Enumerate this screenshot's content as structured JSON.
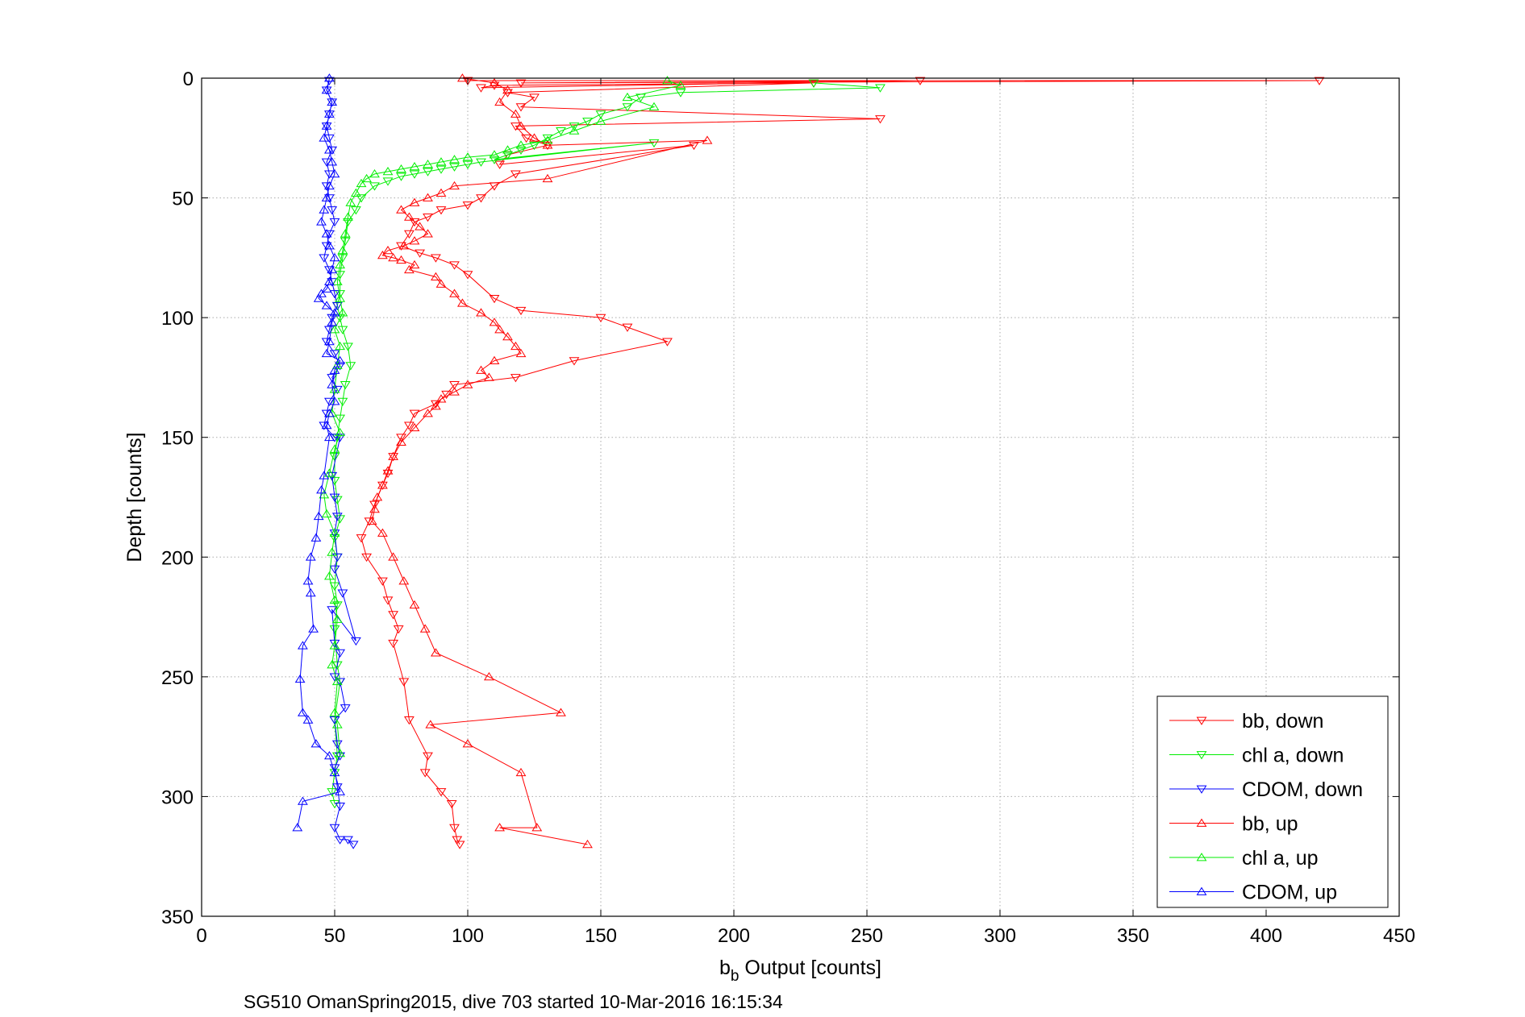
{
  "chart_data": {
    "type": "line",
    "xlabel": "b",
    "xlabel_sub": "b",
    "xlabel_rest": " Output [counts]",
    "ylabel": "Depth [counts]",
    "caption": "SG510 OmanSpring2015, dive 703 started 10-Mar-2016 16:15:34",
    "xlim": [
      0,
      450
    ],
    "ylim": [
      0,
      350
    ],
    "y_reversed": true,
    "grid": true,
    "legend_position": "bottom-right",
    "x_ticks": [
      "0",
      "50",
      "100",
      "150",
      "200",
      "250",
      "300",
      "350",
      "400",
      "450"
    ],
    "y_ticks": [
      "0",
      "50",
      "100",
      "150",
      "200",
      "250",
      "300",
      "350"
    ],
    "series": [
      {
        "name": "bb, down",
        "color": "#ff0000",
        "marker": "triangle-down",
        "x": [
          100,
          420,
          120,
          270,
          105,
          110,
          230,
          115,
          125,
          120,
          255,
          118,
          122,
          130,
          115,
          112,
          185,
          118,
          110,
          105,
          100,
          90,
          85,
          80,
          78,
          75,
          82,
          88,
          95,
          100,
          110,
          120,
          150,
          160,
          175,
          140,
          118,
          95,
          92,
          88,
          80,
          78,
          75,
          72,
          70,
          68,
          65,
          63,
          60,
          62,
          68,
          70,
          72,
          74,
          72,
          76,
          78,
          85,
          84,
          90,
          94,
          95,
          96,
          97
        ],
        "y": [
          1,
          1,
          2,
          1,
          4,
          3,
          2,
          6,
          8,
          12,
          17,
          20,
          25,
          28,
          32,
          36,
          28,
          40,
          45,
          50,
          53,
          55,
          58,
          60,
          65,
          70,
          73,
          75,
          78,
          82,
          92,
          97,
          100,
          104,
          110,
          118,
          125,
          128,
          132,
          136,
          140,
          145,
          150,
          158,
          165,
          170,
          178,
          185,
          192,
          200,
          210,
          218,
          224,
          230,
          236,
          252,
          268,
          283,
          290,
          298,
          303,
          313,
          318,
          320
        ]
      },
      {
        "name": "chl a, down",
        "color": "#00ee00",
        "marker": "triangle-down",
        "x": [
          230,
          255,
          180,
          165,
          160,
          150,
          145,
          140,
          135,
          130,
          125,
          120,
          115,
          110,
          170,
          105,
          100,
          95,
          90,
          85,
          80,
          75,
          70,
          65,
          60,
          58,
          55,
          54,
          53,
          52,
          52,
          51,
          52,
          53,
          55,
          56,
          54,
          53,
          52,
          51,
          50,
          50,
          51,
          52,
          50,
          51,
          50,
          51,
          50,
          51,
          52,
          50,
          51,
          50,
          49,
          50
        ],
        "y": [
          2,
          4,
          6,
          8,
          12,
          15,
          18,
          20,
          22,
          25,
          28,
          30,
          32,
          34,
          27,
          35,
          36,
          37,
          38,
          39,
          40,
          41,
          43,
          45,
          50,
          55,
          60,
          68,
          75,
          82,
          90,
          95,
          100,
          105,
          112,
          120,
          128,
          135,
          142,
          150,
          158,
          168,
          176,
          184,
          192,
          200,
          212,
          220,
          230,
          245,
          252,
          268,
          283,
          290,
          298,
          303
        ]
      },
      {
        "name": "CDOM, down",
        "color": "#0000ff",
        "marker": "triangle-down",
        "x": [
          48,
          47,
          49,
          48,
          47,
          48,
          49,
          47,
          48,
          47,
          48,
          49,
          50,
          48,
          47,
          46,
          48,
          49,
          50,
          51,
          49,
          48,
          47,
          50,
          52,
          49,
          51,
          48,
          47,
          46,
          50,
          52,
          49,
          50,
          51,
          50,
          51,
          50,
          53,
          58,
          49,
          50,
          52,
          50,
          52,
          54,
          50,
          51,
          52,
          50,
          51,
          52,
          50,
          52,
          55,
          57
        ],
        "y": [
          1,
          5,
          10,
          15,
          20,
          25,
          30,
          35,
          40,
          45,
          50,
          55,
          60,
          65,
          70,
          75,
          80,
          85,
          90,
          95,
          100,
          105,
          110,
          115,
          120,
          125,
          130,
          135,
          140,
          145,
          150,
          150,
          166,
          175,
          183,
          190,
          200,
          205,
          215,
          235,
          222,
          236,
          240,
          250,
          252,
          263,
          268,
          278,
          283,
          288,
          296,
          304,
          313,
          318,
          318,
          320
        ]
      },
      {
        "name": "bb, up",
        "color": "#ff0000",
        "marker": "triangle-up",
        "x": [
          98,
          110,
          115,
          112,
          118,
          120,
          125,
          130,
          190,
          130,
          95,
          90,
          85,
          80,
          75,
          78,
          82,
          85,
          80,
          76,
          70,
          68,
          72,
          75,
          80,
          78,
          88,
          90,
          95,
          98,
          105,
          110,
          112,
          115,
          118,
          120,
          110,
          105,
          108,
          100,
          95,
          90,
          88,
          85,
          80,
          75,
          72,
          70,
          68,
          66,
          65,
          64,
          68,
          72,
          76,
          80,
          84,
          88,
          108,
          135,
          86,
          100,
          120,
          126,
          112,
          145
        ],
        "y": [
          0,
          2,
          5,
          10,
          15,
          20,
          25,
          28,
          26,
          42,
          45,
          48,
          50,
          52,
          55,
          58,
          62,
          65,
          68,
          70,
          72,
          74,
          75,
          76,
          78,
          80,
          83,
          86,
          90,
          94,
          98,
          102,
          105,
          108,
          112,
          115,
          118,
          122,
          125,
          128,
          131,
          134,
          137,
          140,
          146,
          152,
          158,
          164,
          170,
          175,
          180,
          185,
          190,
          200,
          210,
          220,
          230,
          240,
          250,
          265,
          270,
          278,
          290,
          313,
          313,
          320
        ]
      },
      {
        "name": "chl a, up",
        "color": "#00ee00",
        "marker": "triangle-up",
        "x": [
          175,
          180,
          160,
          170,
          150,
          140,
          130,
          120,
          115,
          110,
          100,
          95,
          90,
          85,
          80,
          75,
          70,
          65,
          62,
          60,
          58,
          56,
          55,
          54,
          53,
          52,
          51,
          52,
          53,
          50,
          52,
          51,
          50,
          49,
          52,
          50,
          48,
          46,
          47,
          50,
          49,
          48,
          50,
          51,
          50,
          49,
          51,
          50,
          51,
          52
        ],
        "y": [
          1,
          3,
          8,
          12,
          18,
          22,
          26,
          28,
          30,
          32,
          33,
          34,
          35,
          36,
          37,
          38,
          39,
          40,
          42,
          44,
          48,
          52,
          58,
          65,
          72,
          78,
          85,
          92,
          98,
          105,
          112,
          120,
          130,
          140,
          148,
          155,
          165,
          174,
          182,
          190,
          198,
          208,
          218,
          226,
          237,
          245,
          252,
          265,
          270,
          282
        ]
      },
      {
        "name": "CDOM, up",
        "color": "#0000ff",
        "marker": "triangle-up",
        "x": [
          48,
          47,
          49,
          48,
          47,
          46,
          48,
          49,
          50,
          48,
          47,
          46,
          45,
          47,
          48,
          50,
          49,
          48,
          47,
          45,
          44,
          47,
          50,
          49,
          48,
          47,
          52,
          50,
          49,
          50,
          48,
          47,
          48,
          46,
          45,
          44,
          43,
          41,
          40,
          41,
          42,
          38,
          37,
          38,
          40,
          43,
          48,
          50,
          52,
          38,
          36
        ],
        "y": [
          0,
          5,
          10,
          15,
          20,
          25,
          30,
          35,
          40,
          45,
          50,
          55,
          60,
          65,
          70,
          75,
          80,
          85,
          88,
          90,
          92,
          95,
          98,
          102,
          110,
          115,
          118,
          122,
          128,
          135,
          140,
          145,
          150,
          166,
          172,
          183,
          192,
          200,
          210,
          215,
          230,
          237,
          251,
          265,
          268,
          278,
          283,
          290,
          298,
          302,
          313
        ]
      }
    ]
  }
}
